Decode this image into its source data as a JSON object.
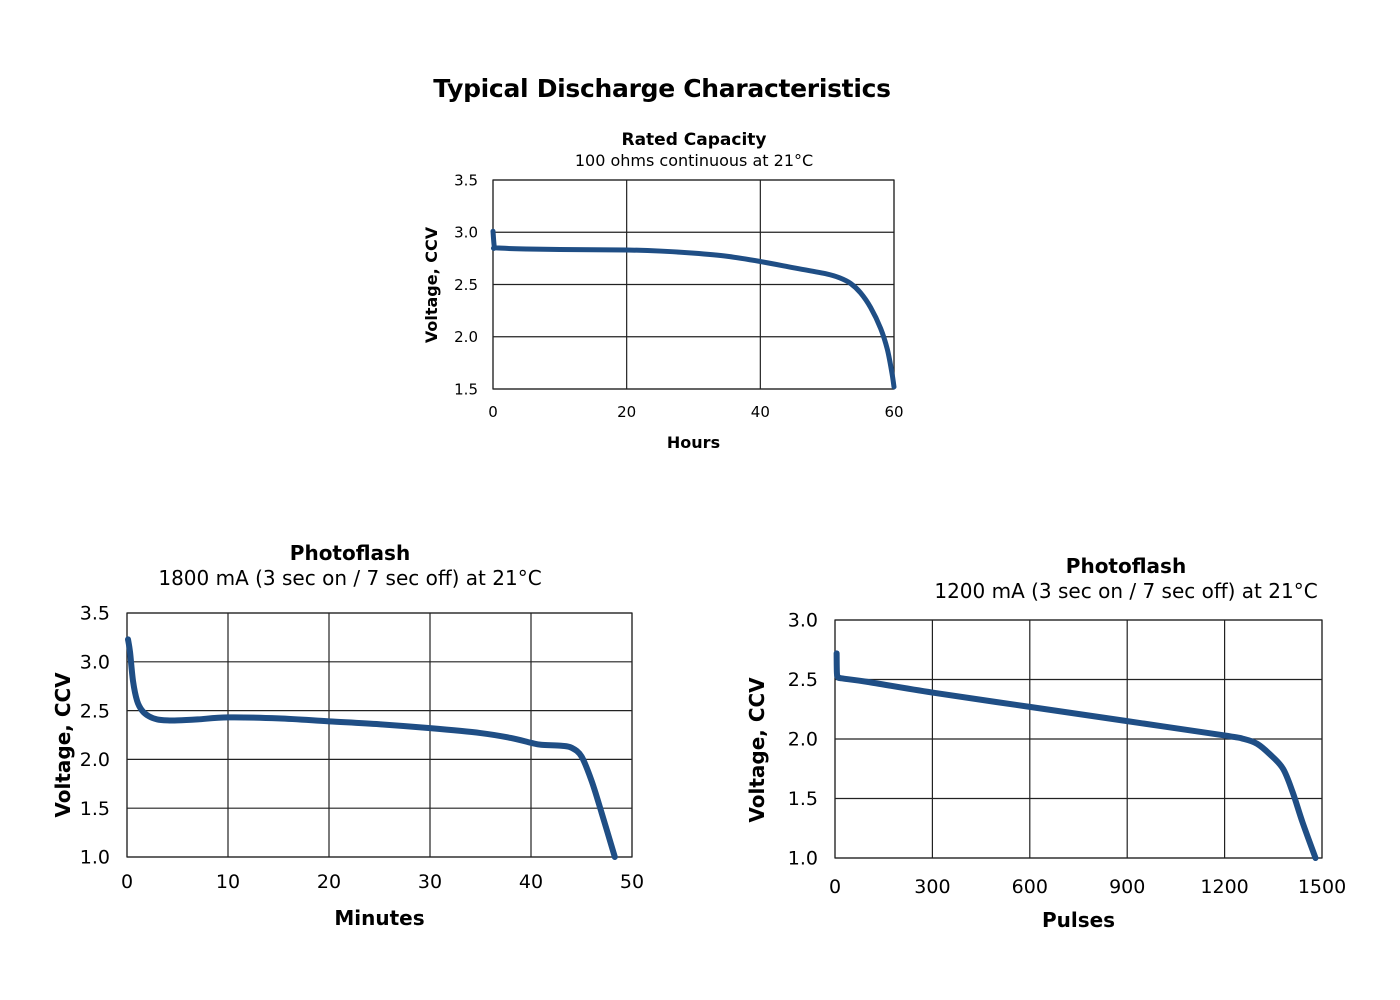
{
  "page_title": "Typical Discharge Characteristics",
  "chart_data": [
    {
      "type": "line",
      "title": "Rated Capacity",
      "subtitle": "100 ohms continuous at 21°C",
      "xlabel": "Hours",
      "ylabel": "Voltage, CCV",
      "xlim": [
        0,
        60
      ],
      "ylim": [
        1.5,
        3.5
      ],
      "xticks": [
        "0",
        "20",
        "40",
        "60"
      ],
      "yticks": [
        "1.5",
        "2.0",
        "2.5",
        "3.0",
        "3.5"
      ],
      "grid": true,
      "line_color": "#1f4e85",
      "series": [
        {
          "name": "Voltage",
          "x": [
            0,
            0.2,
            0.5,
            5,
            10,
            20,
            25,
            30,
            35,
            40,
            45,
            50,
            52,
            53.5,
            55,
            56.5,
            58,
            59,
            59.7,
            60
          ],
          "y": [
            3.01,
            2.86,
            2.85,
            2.84,
            2.835,
            2.83,
            2.82,
            2.8,
            2.77,
            2.72,
            2.66,
            2.6,
            2.56,
            2.51,
            2.42,
            2.28,
            2.08,
            1.88,
            1.65,
            1.52
          ]
        }
      ]
    },
    {
      "type": "line",
      "title": "Photoflash",
      "subtitle": "1800 mA (3 sec on / 7 sec  off) at 21°C",
      "xlabel": "Minutes",
      "ylabel": "Voltage, CCV",
      "xlim": [
        0,
        50
      ],
      "ylim": [
        1.0,
        3.5
      ],
      "xticks": [
        "0",
        "10",
        "20",
        "30",
        "40",
        "50"
      ],
      "yticks": [
        "1.0",
        "1.5",
        "2.0",
        "2.5",
        "3.0",
        "3.5"
      ],
      "grid": true,
      "line_color": "#1f4e85",
      "series": [
        {
          "name": "Voltage",
          "x": [
            0.1,
            0.3,
            0.6,
            1.0,
            1.5,
            2.2,
            3,
            4,
            5,
            7,
            10,
            15,
            20,
            25,
            30,
            35,
            38,
            40,
            41,
            43,
            44,
            45,
            46,
            47,
            48.3
          ],
          "y": [
            3.23,
            3.1,
            2.8,
            2.6,
            2.5,
            2.44,
            2.41,
            2.4,
            2.4,
            2.41,
            2.43,
            2.42,
            2.39,
            2.36,
            2.32,
            2.27,
            2.22,
            2.17,
            2.15,
            2.14,
            2.12,
            2.03,
            1.78,
            1.45,
            1.0
          ]
        }
      ]
    },
    {
      "type": "line",
      "title": "Photoflash",
      "subtitle": "1200 mA (3 sec on / 7 sec  off) at 21°C",
      "xlabel": "Pulses",
      "ylabel": "Voltage, CCV",
      "xlim": [
        0,
        1500
      ],
      "ylim": [
        1.0,
        3.0
      ],
      "xticks": [
        "0",
        "300",
        "600",
        "900",
        "1200",
        "1500"
      ],
      "yticks": [
        "1.0",
        "1.5",
        "2.0",
        "2.5",
        "3.0"
      ],
      "grid": true,
      "line_color": "#1f4e85",
      "series": [
        {
          "name": "Voltage",
          "x": [
            5,
            6,
            10,
            20,
            100,
            300,
            600,
            900,
            1200,
            1260,
            1300,
            1340,
            1380,
            1410,
            1440,
            1480
          ],
          "y": [
            2.72,
            2.55,
            2.52,
            2.51,
            2.48,
            2.39,
            2.27,
            2.15,
            2.03,
            2.0,
            1.96,
            1.87,
            1.75,
            1.55,
            1.3,
            1.0
          ]
        }
      ]
    }
  ]
}
